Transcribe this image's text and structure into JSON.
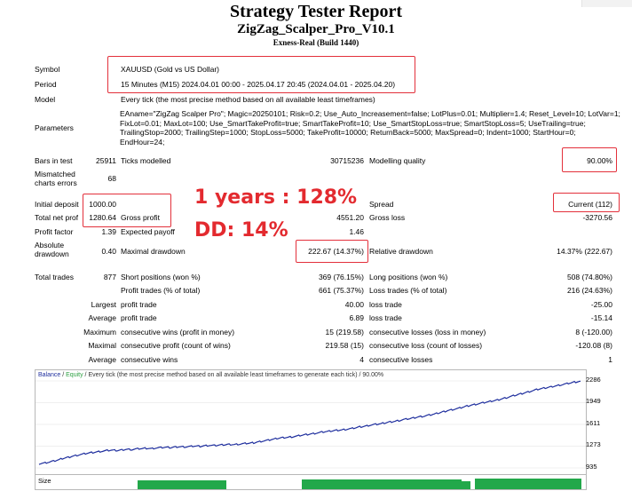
{
  "report": {
    "title": "Strategy Tester Report",
    "ea_name": "ZigZag_Scalper_Pro_V10.1",
    "build": "Exness-Real (Build 1440)"
  },
  "settings": {
    "symbol_label": "Symbol",
    "symbol_value": "XAUUSD (Gold vs US Dollar)",
    "period_label": "Period",
    "period_value": "15 Minutes (M15) 2024.04.01 00:00 - 2025.04.17 20:45 (2024.04.01 - 2025.04.20)",
    "model_label": "Model",
    "model_value": "Every tick (the most precise method based on all available least timeframes)",
    "params_label": "Parameters",
    "params_value": "EAname=\"ZigZag Scalper Pro\"; Magic=20250101; Risk=0.2; Use_Auto_Increasement=false; LotPlus=0.01; Multiplier=1.4; Reset_Level=10; LotVar=1; FixLot=0.01; MaxLot=100; Use_SmartTakeProfit=true; SmartTakeProfit=10; Use_SmartStopLoss=true; SmartStopLoss=5; UseTrailing=true; TrailingStop=2000; TrailingStep=1000; StopLoss=5000; TakeProfit=10000; ReturnBack=5000; MaxSpread=0; Indent=1000; StartHour=0; EndHour=24;"
  },
  "stats": {
    "bars_label": "Bars in test",
    "bars_value": "25911",
    "ticks_label": "Ticks modelled",
    "ticks_value": "30715236",
    "quality_label": "Modelling quality",
    "quality_value": "90.00%",
    "mismatched_label_1": "Mismatched",
    "mismatched_label_2": "charts errors",
    "mismatched_value": "68",
    "deposit_label": "Initial deposit",
    "deposit_value": "1000.00",
    "spread_label": "Spread",
    "spread_value": "Current (112)",
    "netprofit_label": "Total net profit",
    "netprofit_value": "1280.64",
    "grossprofit_label": "Gross profit",
    "grossprofit_value": "4551.20",
    "grossloss_label": "Gross loss",
    "grossloss_value": "-3270.56",
    "pf_label": "Profit factor",
    "pf_value": "1.39",
    "payoff_label": "Expected payoff",
    "payoff_value": "1.46",
    "absdd_label_1": "Absolute",
    "absdd_label_2": "drawdown",
    "absdd_value": "0.40",
    "maxdd_label": "Maximal drawdown",
    "maxdd_value": "222.67 (14.37%)",
    "reldd_label": "Relative drawdown",
    "reldd_value": "14.37% (222.67)",
    "trades_label": "Total trades",
    "trades_value": "877",
    "short_label": "Short positions (won %)",
    "short_value": "369 (76.15%)",
    "long_label": "Long positions (won %)",
    "long_value": "508 (74.80%)",
    "profittrades_label": "Profit trades (% of total)",
    "profittrades_value": "661 (75.37%)",
    "losstrades_label": "Loss trades (% of total)",
    "losstrades_value": "216 (24.63%)",
    "largest": "Largest",
    "profit_trade": "profit trade",
    "largest_profit": "40.00",
    "loss_trade": "loss trade",
    "largest_loss": "-25.00",
    "average": "Average",
    "avg_profit": "6.89",
    "avg_loss": "-15.14",
    "maximum": "Maximum",
    "cons_wins_money_label": "consecutive wins (profit in money)",
    "cons_wins_money": "15 (219.58)",
    "cons_losses_money_label": "consecutive losses (loss in money)",
    "cons_losses_money": "8 (-120.00)",
    "maximal": "Maximal",
    "cons_profit_count_label": "consecutive profit (count of wins)",
    "cons_profit_count": "219.58 (15)",
    "cons_loss_count_label": "consecutive loss (count of losses)",
    "cons_loss_count": "-120.08 (8)",
    "avg_cons_wins_label": "consecutive wins",
    "avg_cons_wins": "4",
    "avg_cons_losses_label": "consecutive losses",
    "avg_cons_losses": "1"
  },
  "annotations": {
    "years": "1 years : 128%",
    "dd": "DD: 14%"
  },
  "chart_data": {
    "type": "line",
    "legend": {
      "balance": "Balance",
      "sep": " / ",
      "equity": "Equity",
      "rest": " / Every tick (the most precise method based on all available least timeframes to generate each tick) / 90.00%"
    },
    "y_ticks": [
      "2286",
      "1949",
      "1611",
      "1273",
      "935"
    ],
    "ylim": [
      935,
      2286
    ],
    "size_label": "Size",
    "colors": {
      "balance": "#1f2f9e",
      "equity": "#2ea043",
      "size": "#22a84a"
    },
    "series": [
      {
        "name": "Balance",
        "values": [
          1000,
          1010,
          1025,
          1040,
          1060,
          1085,
          1100,
          1120,
          1135,
          1150,
          1165,
          1175,
          1185,
          1195,
          1205,
          1210,
          1205,
          1215,
          1225,
          1220,
          1230,
          1235,
          1240,
          1235,
          1245,
          1250,
          1255,
          1250,
          1260,
          1265,
          1262,
          1268,
          1275,
          1270,
          1280,
          1285,
          1282,
          1290,
          1295,
          1300,
          1298,
          1305,
          1312,
          1318,
          1325,
          1340,
          1355,
          1365,
          1380,
          1395,
          1405,
          1410,
          1420,
          1430,
          1445,
          1455,
          1465,
          1478,
          1490,
          1500,
          1510,
          1520,
          1525,
          1535,
          1545,
          1560,
          1575,
          1585,
          1600,
          1610,
          1620,
          1635,
          1650,
          1660,
          1675,
          1690,
          1700,
          1715,
          1730,
          1740,
          1755,
          1770,
          1790,
          1810,
          1830,
          1845,
          1860,
          1880,
          1900,
          1915,
          1930,
          1945,
          1960,
          1975,
          1990,
          2010,
          2030,
          2050,
          2070,
          2090,
          2110,
          2130,
          2150,
          2165,
          2180,
          2195,
          2210,
          2225,
          2240,
          2255,
          2270,
          2280
        ]
      }
    ]
  }
}
